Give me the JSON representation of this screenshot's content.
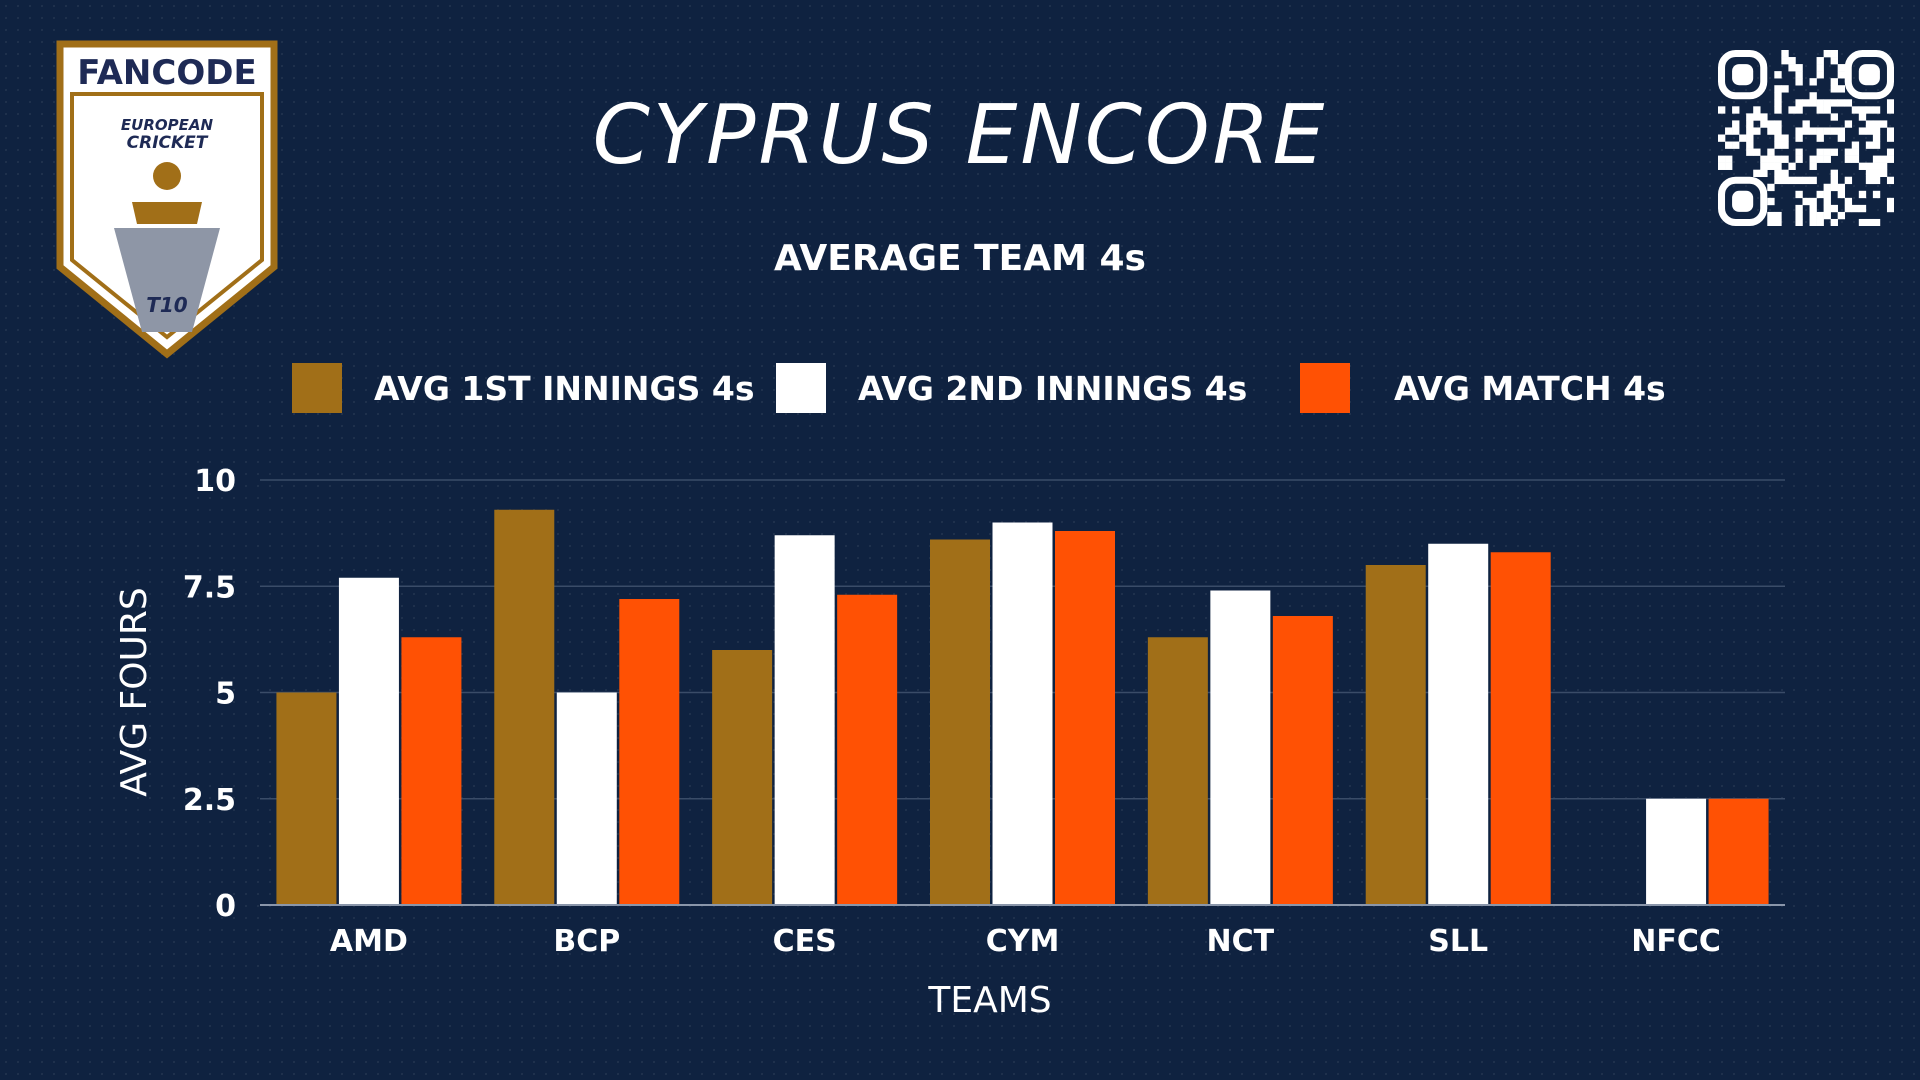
{
  "header": {
    "title": "CYPRUS ENCORE",
    "subtitle": "AVERAGE TEAM 4s"
  },
  "logo": {
    "brand": "FANCODE",
    "line1": "EUROPEAN",
    "line2": "CRICKET",
    "badge": "T10"
  },
  "colors": {
    "background": "#0f2240",
    "first_innings": "#a16f18",
    "second_innings": "#ffffff",
    "match": "#ff5104",
    "gridline": "#3a4c68"
  },
  "legend": [
    {
      "label": "AVG 1ST INNINGS 4s",
      "color": "#a16f18"
    },
    {
      "label": "AVG 2ND INNINGS 4s",
      "color": "#ffffff"
    },
    {
      "label": "AVG MATCH 4s",
      "color": "#ff5104"
    }
  ],
  "chart_data": {
    "type": "bar",
    "categories": [
      "AMD",
      "BCP",
      "CES",
      "CYM",
      "NCT",
      "SLL",
      "NFCC"
    ],
    "series": [
      {
        "name": "AVG 1ST INNINGS 4s",
        "values": [
          5.0,
          9.3,
          6.0,
          8.6,
          6.3,
          8.0,
          0
        ]
      },
      {
        "name": "AVG 2ND INNINGS 4s",
        "values": [
          7.7,
          5.0,
          8.7,
          9.0,
          7.4,
          8.5,
          2.5
        ]
      },
      {
        "name": "AVG MATCH 4s",
        "values": [
          6.3,
          7.2,
          7.3,
          8.8,
          6.8,
          8.3,
          2.5
        ]
      }
    ],
    "xlabel": "TEAMS",
    "ylabel": "AVG FOURS",
    "ylim": [
      0,
      10
    ],
    "yticks": [
      0,
      2.5,
      5,
      7.5,
      10
    ],
    "ytick_labels": [
      "0",
      "2.5",
      "5",
      "7.5",
      "10"
    ],
    "grid": true,
    "legend_position": "top"
  }
}
